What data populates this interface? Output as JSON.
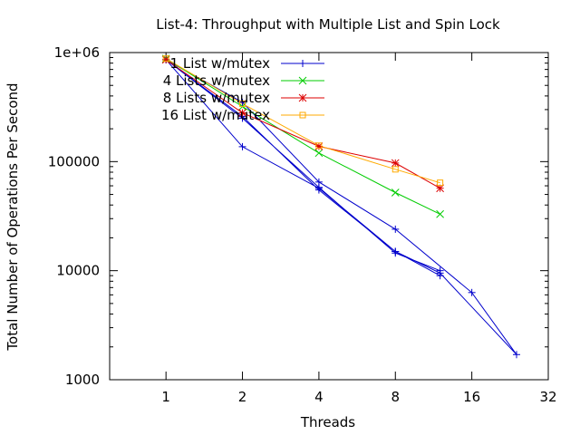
{
  "chart_data": {
    "type": "line",
    "title": "List-4: Throughput with Multiple List and Spin Lock",
    "xlabel": "Threads",
    "ylabel": "Total Number of Operations Per Second",
    "xscale": "log2",
    "yscale": "log10",
    "xlim": [
      0.6,
      32
    ],
    "ylim": [
      1000,
      1000000
    ],
    "xticks": [
      {
        "value": 1,
        "label": "1"
      },
      {
        "value": 2,
        "label": "2"
      },
      {
        "value": 4,
        "label": "4"
      },
      {
        "value": 8,
        "label": "8"
      },
      {
        "value": 16,
        "label": "16"
      },
      {
        "value": 32,
        "label": "32"
      }
    ],
    "yticks": [
      {
        "value": 1000,
        "label": "1000"
      },
      {
        "value": 10000,
        "label": "10000"
      },
      {
        "value": 100000,
        "label": "100000"
      },
      {
        "value": 1000000,
        "label": "1e+06"
      }
    ],
    "grid": false,
    "legend_position": "top-left",
    "series": [
      {
        "name": "1 List w/mutex",
        "color": "#0000cc",
        "marker": "plus",
        "points": [
          [
            1,
            860000
          ],
          [
            2,
            137000
          ],
          [
            4,
            57000
          ],
          [
            8,
            15000
          ],
          [
            12,
            9500
          ],
          [
            24,
            1700
          ],
          [
            16,
            6300
          ],
          [
            8,
            24000
          ],
          [
            4,
            65000
          ],
          [
            2,
            350000
          ],
          [
            1,
            860000
          ],
          [
            2,
            260000
          ],
          [
            4,
            55000
          ],
          [
            8,
            15000
          ],
          [
            12,
            9000
          ],
          [
            12,
            10000
          ],
          [
            8,
            14500
          ],
          [
            4,
            58000
          ],
          [
            2,
            250000
          ],
          [
            1,
            860000
          ]
        ]
      },
      {
        "name": "4 Lists w/mutex",
        "color": "#00cc00",
        "marker": "x",
        "points": [
          [
            1,
            880000
          ],
          [
            2,
            320000
          ],
          [
            4,
            120000
          ],
          [
            8,
            52000
          ],
          [
            12,
            33000
          ]
        ]
      },
      {
        "name": "8 Lists w/mutex",
        "color": "#dd0000",
        "marker": "star",
        "points": [
          [
            1,
            860000
          ],
          [
            2,
            280000
          ],
          [
            4,
            138000
          ],
          [
            8,
            97000
          ],
          [
            12,
            57000
          ]
        ]
      },
      {
        "name": "16 List w/mutex",
        "color": "#ffaa00",
        "marker": "square",
        "points": [
          [
            1,
            880000
          ],
          [
            2,
            340000
          ],
          [
            4,
            140000
          ],
          [
            8,
            85000
          ],
          [
            12,
            64000
          ]
        ]
      }
    ]
  }
}
